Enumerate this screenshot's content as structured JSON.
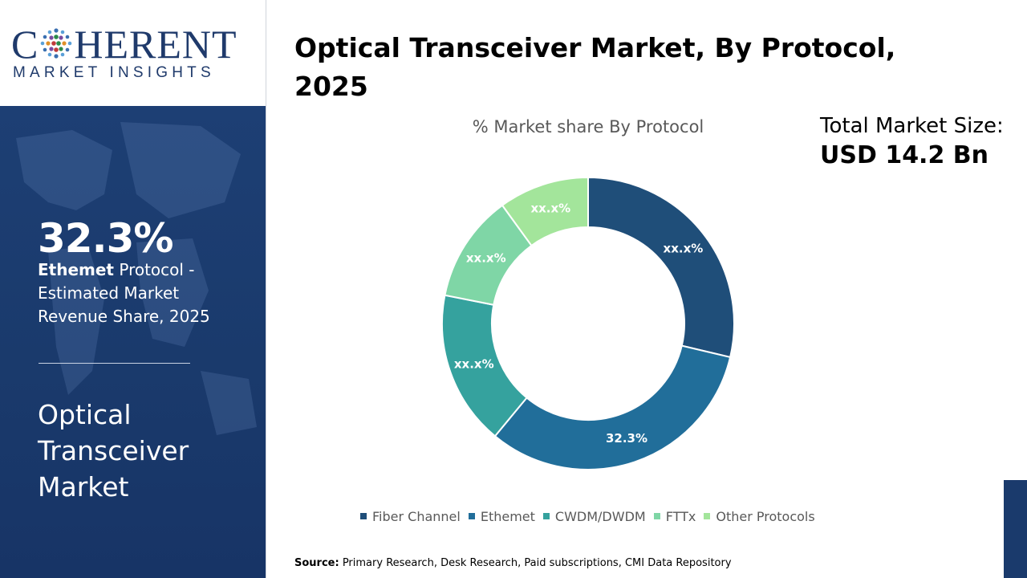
{
  "logo": {
    "word_pre": "C",
    "word_post": "HERENT",
    "tagline": "MARKET INSIGHTS"
  },
  "sidebar": {
    "stat_value": "32.3%",
    "stat_bold": "Ethemet",
    "stat_rest": " Protocol - Estimated Market Revenue Share, 2025",
    "market_name": "Optical Transceiver Market"
  },
  "title": "Optical Transceiver Market, By Protocol, 2025",
  "total_market": {
    "label": "Total Market Size:",
    "value": "USD 14.2 Bn"
  },
  "source": {
    "label": "Source:",
    "text": " Primary Research, Desk Research, Paid subscriptions, CMI Data Repository"
  },
  "colors": {
    "navy": "#1a3a6c",
    "fiber_channel": "#1f4e79",
    "ethemet": "#216e9a",
    "cwdm": "#35a29e",
    "fttx": "#7fd6a6",
    "other": "#a3e59b"
  },
  "chart_data": {
    "type": "pie",
    "title": "% Market share By Protocol",
    "legend_position": "bottom",
    "categories": [
      "Fiber Channel",
      "Ethemet",
      "CWDM/DWDM",
      "FTTx",
      "Other Protocols"
    ],
    "values": [
      28.7,
      32.3,
      17.1,
      11.9,
      10.0
    ],
    "data_labels": [
      "xx.x%",
      "32.3%",
      "xx.x%",
      "xx.x%",
      "xx.x%"
    ],
    "colors": [
      "#1f4e79",
      "#216e9a",
      "#35a29e",
      "#7fd6a6",
      "#a3e59b"
    ],
    "donut": true
  }
}
